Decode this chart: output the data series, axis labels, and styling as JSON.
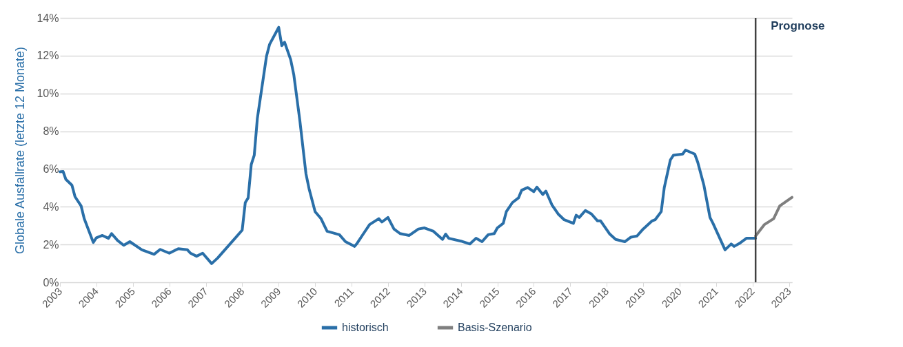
{
  "chart_data": {
    "type": "line",
    "ylabel": "Globale Ausfallrate (letzte 12 Monate)",
    "legend": "bottom",
    "grid": "y",
    "line_style": "solid",
    "xlim": [
      "2003-01",
      "2023-02"
    ],
    "xticks": [
      "2003",
      "2004",
      "2005",
      "2006",
      "2007",
      "2008",
      "2009",
      "2010",
      "2011",
      "2012",
      "2013",
      "2014",
      "2015",
      "2016",
      "2017",
      "2018",
      "2019",
      "2020",
      "2021",
      "2022",
      "2023"
    ],
    "ylim": [
      0,
      14
    ],
    "yticks": [
      {
        "value": 0,
        "label": "0%"
      },
      {
        "value": 2,
        "label": "2%"
      },
      {
        "value": 4,
        "label": "4%"
      },
      {
        "value": 6,
        "label": "6%"
      },
      {
        "value": 8,
        "label": "8%"
      },
      {
        "value": 10,
        "label": "10%"
      },
      {
        "value": 12,
        "label": "12%"
      },
      {
        "value": 14,
        "label": "14%"
      }
    ],
    "ref_lines": [
      {
        "axis": "x",
        "value": "2022-02",
        "label": "Prognose",
        "color": "#404040"
      }
    ],
    "series": [
      {
        "name": "historisch",
        "color": "#2a6fa8",
        "x": [
          "2003-01",
          "2003-02",
          "2003-03",
          "2003-05",
          "2003-06",
          "2003-08",
          "2003-09",
          "2003-12",
          "2004-01",
          "2004-03",
          "2004-05",
          "2004-06",
          "2004-08",
          "2004-10",
          "2004-12",
          "2005-04",
          "2005-08",
          "2005-10",
          "2006-01",
          "2006-04",
          "2006-07",
          "2006-08",
          "2006-10",
          "2006-12",
          "2007-03",
          "2007-05",
          "2007-09",
          "2007-11",
          "2008-01",
          "2008-02",
          "2008-03",
          "2008-04",
          "2008-05",
          "2008-06",
          "2008-09",
          "2008-10",
          "2009-01",
          "2009-02",
          "2009-03",
          "2009-05",
          "2009-06",
          "2009-08",
          "2009-10",
          "2009-11",
          "2010-01",
          "2010-03",
          "2010-05",
          "2010-09",
          "2010-11",
          "2011-02",
          "2011-03",
          "2011-05",
          "2011-07",
          "2011-10",
          "2011-11",
          "2012-01",
          "2012-03",
          "2012-05",
          "2012-08",
          "2012-11",
          "2013-01",
          "2013-04",
          "2013-07",
          "2013-08",
          "2013-09",
          "2014-01",
          "2014-04",
          "2014-06",
          "2014-08",
          "2014-10",
          "2014-12",
          "2015-01",
          "2015-03",
          "2015-04",
          "2015-06",
          "2015-08",
          "2015-09",
          "2015-11",
          "2016-01",
          "2016-02",
          "2016-04",
          "2016-05",
          "2016-07",
          "2016-09",
          "2016-11",
          "2017-02",
          "2017-03",
          "2017-04",
          "2017-06",
          "2017-08",
          "2017-10",
          "2017-11",
          "2018-02",
          "2018-04",
          "2018-07",
          "2018-09",
          "2018-11",
          "2019-01",
          "2019-04",
          "2019-05",
          "2019-07",
          "2019-08",
          "2019-10",
          "2019-11",
          "2020-02",
          "2020-03",
          "2020-06",
          "2020-07",
          "2020-09",
          "2020-11",
          "2020-12",
          "2021-04",
          "2021-06",
          "2021-07",
          "2021-09",
          "2021-11",
          "2022-02"
        ],
        "values": [
          5.85,
          5.87,
          5.45,
          5.14,
          4.53,
          4.04,
          3.37,
          2.11,
          2.36,
          2.48,
          2.33,
          2.58,
          2.21,
          1.96,
          2.15,
          1.72,
          1.48,
          1.74,
          1.54,
          1.78,
          1.72,
          1.54,
          1.38,
          1.54,
          0.99,
          1.29,
          2.03,
          2.39,
          2.76,
          4.22,
          4.47,
          6.24,
          6.73,
          8.68,
          11.98,
          12.59,
          13.5,
          12.53,
          12.71,
          11.79,
          11.0,
          8.56,
          5.75,
          4.96,
          3.74,
          3.37,
          2.7,
          2.52,
          2.15,
          1.9,
          2.09,
          2.58,
          3.06,
          3.37,
          3.19,
          3.43,
          2.82,
          2.58,
          2.48,
          2.82,
          2.88,
          2.7,
          2.27,
          2.55,
          2.33,
          2.18,
          2.03,
          2.33,
          2.15,
          2.52,
          2.58,
          2.88,
          3.12,
          3.74,
          4.22,
          4.47,
          4.87,
          5.02,
          4.8,
          5.04,
          4.65,
          4.83,
          4.1,
          3.62,
          3.31,
          3.12,
          3.55,
          3.43,
          3.8,
          3.62,
          3.25,
          3.25,
          2.55,
          2.27,
          2.15,
          2.39,
          2.45,
          2.82,
          3.25,
          3.31,
          3.74,
          5.02,
          6.48,
          6.73,
          6.79,
          7.0,
          6.79,
          6.36,
          5.14,
          3.43,
          3.12,
          1.72,
          2.03,
          1.9,
          2.09,
          2.33,
          2.33
        ]
      },
      {
        "name": "Basis-Szenario",
        "color": "#7f7f7f",
        "x": [
          "2022-02",
          "2022-05",
          "2022-08",
          "2022-10",
          "2023-02"
        ],
        "values": [
          2.45,
          3.06,
          3.37,
          4.04,
          4.5
        ]
      }
    ]
  }
}
